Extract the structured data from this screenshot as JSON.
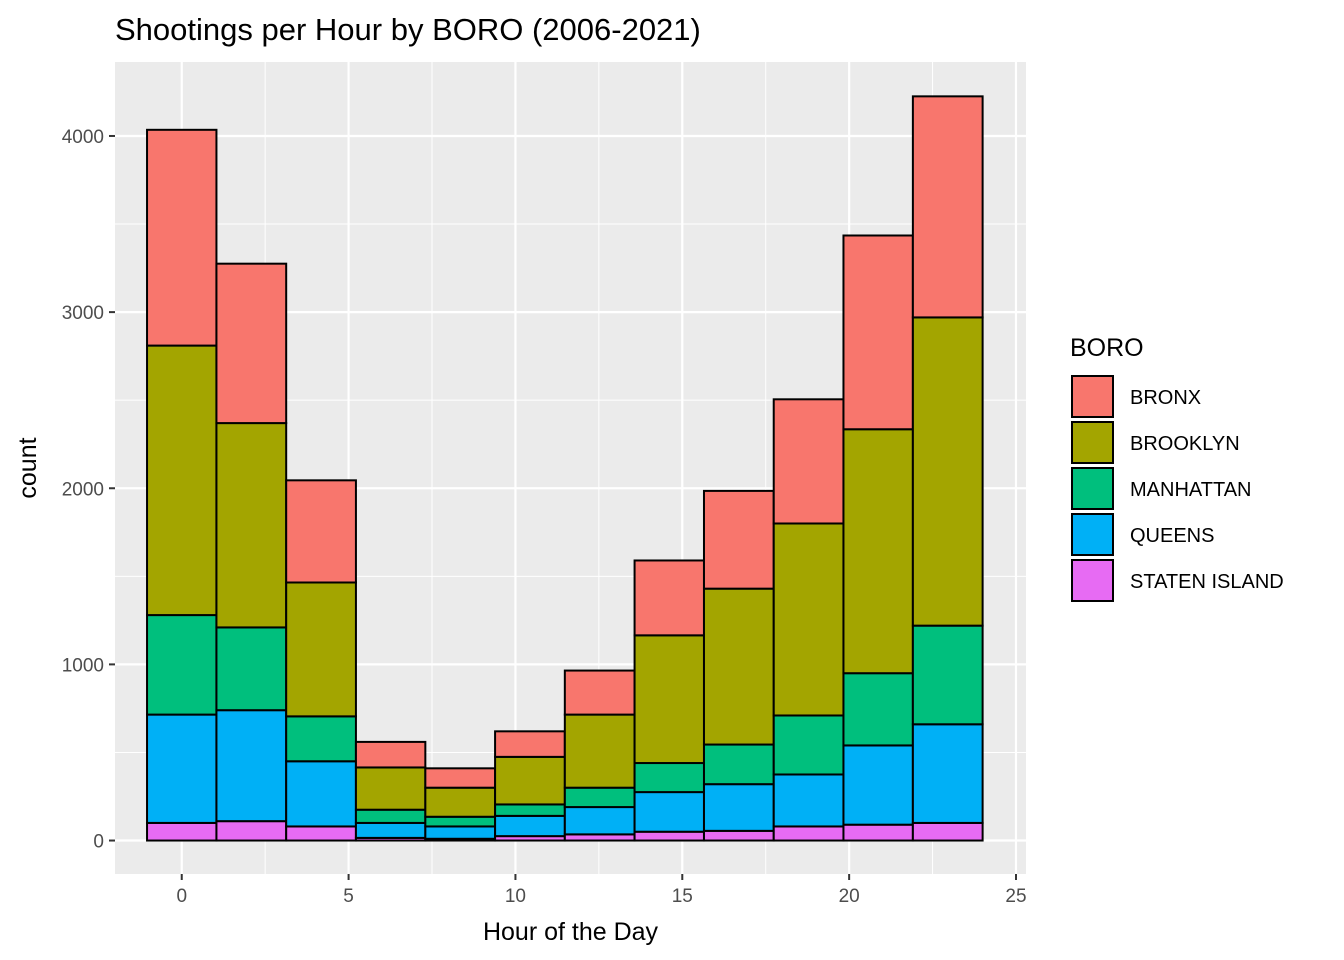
{
  "chart_data": {
    "type": "bar",
    "stacked": true,
    "title": "Shootings per Hour by BORO (2006-2021)",
    "xlabel": "Hour of the Day",
    "ylabel": "count",
    "xlim": [
      -2,
      25.3
    ],
    "ylim": [
      -190,
      4420
    ],
    "x_ticks": [
      0,
      5,
      10,
      15,
      20,
      25
    ],
    "y_ticks": [
      0,
      1000,
      2000,
      3000,
      4000
    ],
    "bin_edges": [
      -1.04,
      1.04,
      3.13,
      5.22,
      7.3,
      9.39,
      11.48,
      13.57,
      15.65,
      17.74,
      19.83,
      21.91,
      24.0
    ],
    "legend": {
      "title": "BORO",
      "position": "right"
    },
    "series": [
      {
        "name": "STATEN ISLAND",
        "color": "#E76BF3",
        "values": [
          100,
          110,
          80,
          15,
          10,
          25,
          35,
          50,
          55,
          80,
          90,
          100
        ]
      },
      {
        "name": "QUEENS",
        "color": "#00B0F6",
        "values": [
          615,
          630,
          370,
          85,
          70,
          115,
          155,
          225,
          265,
          295,
          450,
          560
        ]
      },
      {
        "name": "MANHATTAN",
        "color": "#00BF7D",
        "values": [
          565,
          470,
          255,
          75,
          55,
          65,
          110,
          165,
          225,
          335,
          410,
          560
        ]
      },
      {
        "name": "BROOKLYN",
        "color": "#A3A500",
        "values": [
          1530,
          1160,
          760,
          240,
          165,
          270,
          415,
          725,
          885,
          1090,
          1385,
          1750
        ]
      },
      {
        "name": "BRONX",
        "color": "#F8766D",
        "values": [
          1225,
          905,
          580,
          145,
          110,
          145,
          250,
          425,
          555,
          705,
          1100,
          1255
        ]
      }
    ],
    "legend_order": [
      "BRONX",
      "BROOKLYN",
      "MANHATTAN",
      "QUEENS",
      "STATEN ISLAND"
    ],
    "colors": {
      "panel": "#EBEBEB",
      "grid": "#FFFFFF",
      "bar_outline": "#000000"
    }
  }
}
